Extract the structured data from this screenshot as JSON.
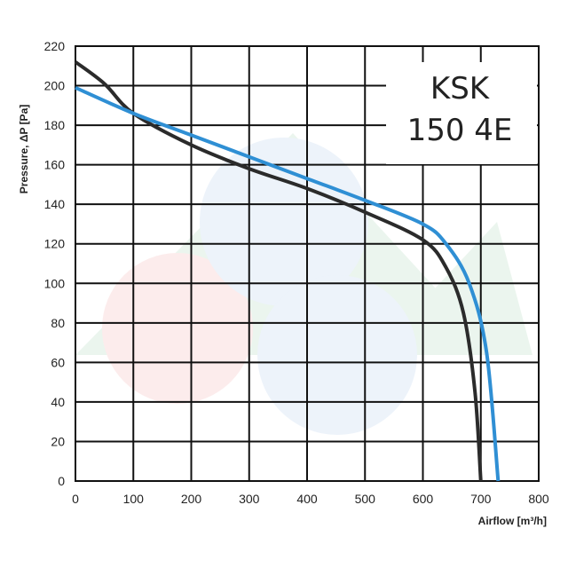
{
  "chart_data": {
    "type": "line",
    "xlabel": "Airflow [m³/h]",
    "ylabel": "Pressure, ΔP [Pa]",
    "xlim": [
      0,
      800
    ],
    "ylim": [
      0,
      220
    ],
    "x_ticks": [
      0,
      100,
      200,
      300,
      400,
      500,
      600,
      700,
      800
    ],
    "y_ticks": [
      0,
      20,
      40,
      60,
      80,
      100,
      120,
      140,
      160,
      180,
      200,
      220
    ],
    "grid": true,
    "annotation": [
      "KSK",
      "150 4E"
    ],
    "series": [
      {
        "color": "#2b2b2b",
        "points": [
          [
            0,
            212
          ],
          [
            50,
            201
          ],
          [
            100,
            186
          ],
          [
            200,
            170
          ],
          [
            300,
            158
          ],
          [
            400,
            148
          ],
          [
            500,
            136
          ],
          [
            600,
            122
          ],
          [
            640,
            108
          ],
          [
            670,
            85
          ],
          [
            690,
            45
          ],
          [
            700,
            0
          ]
        ]
      },
      {
        "color": "#2f8fd4",
        "points": [
          [
            0,
            199
          ],
          [
            100,
            186
          ],
          [
            200,
            175
          ],
          [
            300,
            164
          ],
          [
            400,
            153
          ],
          [
            500,
            142
          ],
          [
            600,
            130
          ],
          [
            640,
            120
          ],
          [
            680,
            100
          ],
          [
            710,
            65
          ],
          [
            730,
            0
          ]
        ]
      }
    ]
  }
}
